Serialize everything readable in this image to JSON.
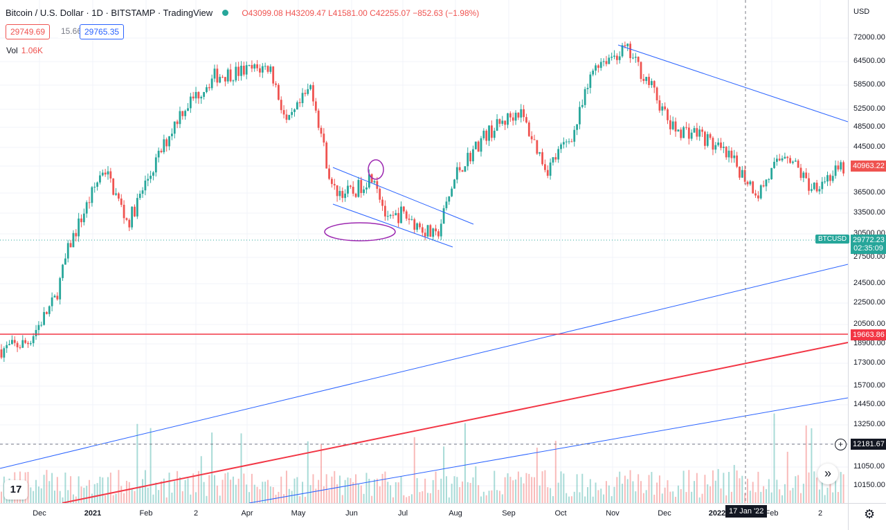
{
  "header": {
    "symbol_title": "Bitcoin / U.S. Dollar · 1D · BITSTAMP · TradingView",
    "ohlc": "O43099.08 H43209.47 L41581.00 C42255.07 −852.63 (−1.98%)",
    "bid": "29749.69",
    "spread": "15.66",
    "ask": "29765.35",
    "vol_label": "Vol",
    "vol_value": "1.06K"
  },
  "price_axis": {
    "currency": "USD",
    "ticks": [
      "72000.00",
      "64500.00",
      "58500.00",
      "52500.00",
      "48500.00",
      "44500.00",
      "40500.00",
      "36500.00",
      "33500.00",
      "30500.00",
      "27500.00",
      "24500.00",
      "22500.00",
      "20500.00",
      "18900.00",
      "17300.00",
      "15700.00",
      "14450.00",
      "13250.00",
      "12181.67",
      "11050.00",
      "10150.00"
    ],
    "tags": {
      "last_price": "40963.22",
      "current_price": "29772.23",
      "countdown": "02:35:09",
      "horizontal_level": "19663.86",
      "crosshair_price": "12181.67"
    },
    "symbol_tag": "BTCUSD"
  },
  "time_axis": {
    "labels": [
      "Dec",
      "2021",
      "Feb",
      "2",
      "Apr",
      "May",
      "Jun",
      "Jul",
      "Aug",
      "Sep",
      "Oct",
      "Nov",
      "Dec",
      "2022",
      "Feb",
      "2"
    ],
    "crosshair_date": "17 Jan '22"
  },
  "colors": {
    "up": "#26a69a",
    "down": "#ef5350",
    "trendline_blue": "#2962ff",
    "level_red": "#f23645",
    "annotation_purple": "#9c27b0"
  },
  "chart_data": {
    "type": "candlestick",
    "title": "Bitcoin / U.S. Dollar · 1D · BITSTAMP",
    "scale": "log",
    "x": [
      "2020-11-20",
      "2020-12-01",
      "2020-12-17",
      "2021-01-01",
      "2021-01-08",
      "2021-01-21",
      "2021-02-08",
      "2021-02-21",
      "2021-03-13",
      "2021-04-14",
      "2021-04-25",
      "2021-05-08",
      "2021-05-19",
      "2021-06-01",
      "2021-06-15",
      "2021-06-22",
      "2021-07-01",
      "2021-07-20",
      "2021-08-01",
      "2021-08-14",
      "2021-09-06",
      "2021-09-21",
      "2021-10-01",
      "2021-10-20",
      "2021-11-10",
      "2021-11-25",
      "2021-12-04",
      "2021-12-27",
      "2022-01-10",
      "2022-01-24",
      "2022-02-10",
      "2022-02-24",
      "2022-03-02"
    ],
    "close": [
      18400,
      19000,
      23000,
      29000,
      41000,
      32000,
      38000,
      52000,
      61000,
      63500,
      49000,
      58500,
      37000,
      36500,
      40000,
      32000,
      33500,
      30000,
      40000,
      47000,
      52500,
      40500,
      48000,
      64500,
      68500,
      58500,
      48500,
      47500,
      41800,
      36500,
      44000,
      37500,
      40963
    ]
  },
  "annotations": {
    "trendlines": "descending-channel-and-long-term-support",
    "circles": "breakout-wick-and-channel-lows"
  }
}
